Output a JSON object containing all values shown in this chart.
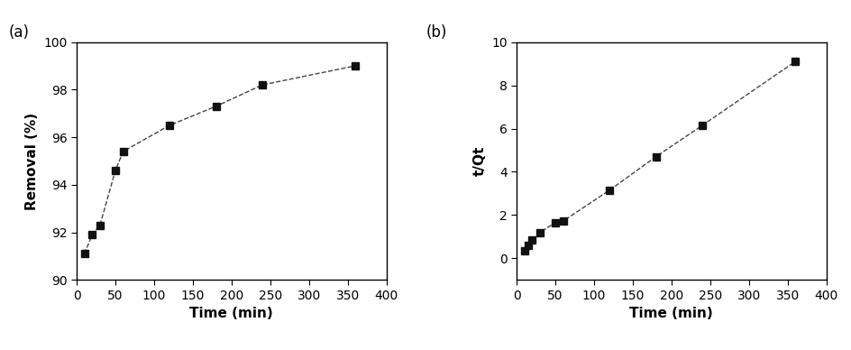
{
  "plot_a": {
    "time": [
      10,
      20,
      30,
      50,
      60,
      120,
      180,
      240,
      360
    ],
    "removal": [
      91.1,
      91.9,
      92.3,
      94.6,
      95.4,
      96.5,
      97.3,
      98.2,
      99.0
    ],
    "xlabel": "Time (min)",
    "ylabel": "Removal (%)",
    "xlim": [
      0,
      400
    ],
    "ylim": [
      90,
      100
    ],
    "xticks": [
      0,
      50,
      100,
      150,
      200,
      250,
      300,
      350,
      400
    ],
    "yticks": [
      90,
      92,
      94,
      96,
      98,
      100
    ],
    "label": "(a)"
  },
  "plot_b": {
    "time": [
      10,
      15,
      20,
      30,
      50,
      60,
      120,
      180,
      240,
      360
    ],
    "tqt": [
      0.35,
      0.6,
      0.85,
      1.2,
      1.65,
      1.72,
      3.15,
      4.7,
      6.15,
      9.1
    ],
    "xlabel": "Time (min)",
    "ylabel": "t/Qt",
    "xlim": [
      0,
      400
    ],
    "ylim": [
      -1,
      10
    ],
    "xticks": [
      0,
      50,
      100,
      150,
      200,
      250,
      300,
      350,
      400
    ],
    "yticks": [
      0,
      2,
      4,
      6,
      8,
      10
    ],
    "label": "(b)"
  },
  "marker": "s",
  "markersize": 6,
  "markerfacecolor": "#111111",
  "markeredgecolor": "#111111",
  "linecolor": "#444444",
  "linewidth": 1.0,
  "linestyle": "--",
  "fontsize_label": 11,
  "fontsize_tick": 10,
  "fontsize_panel": 12,
  "background_color": "#ffffff"
}
